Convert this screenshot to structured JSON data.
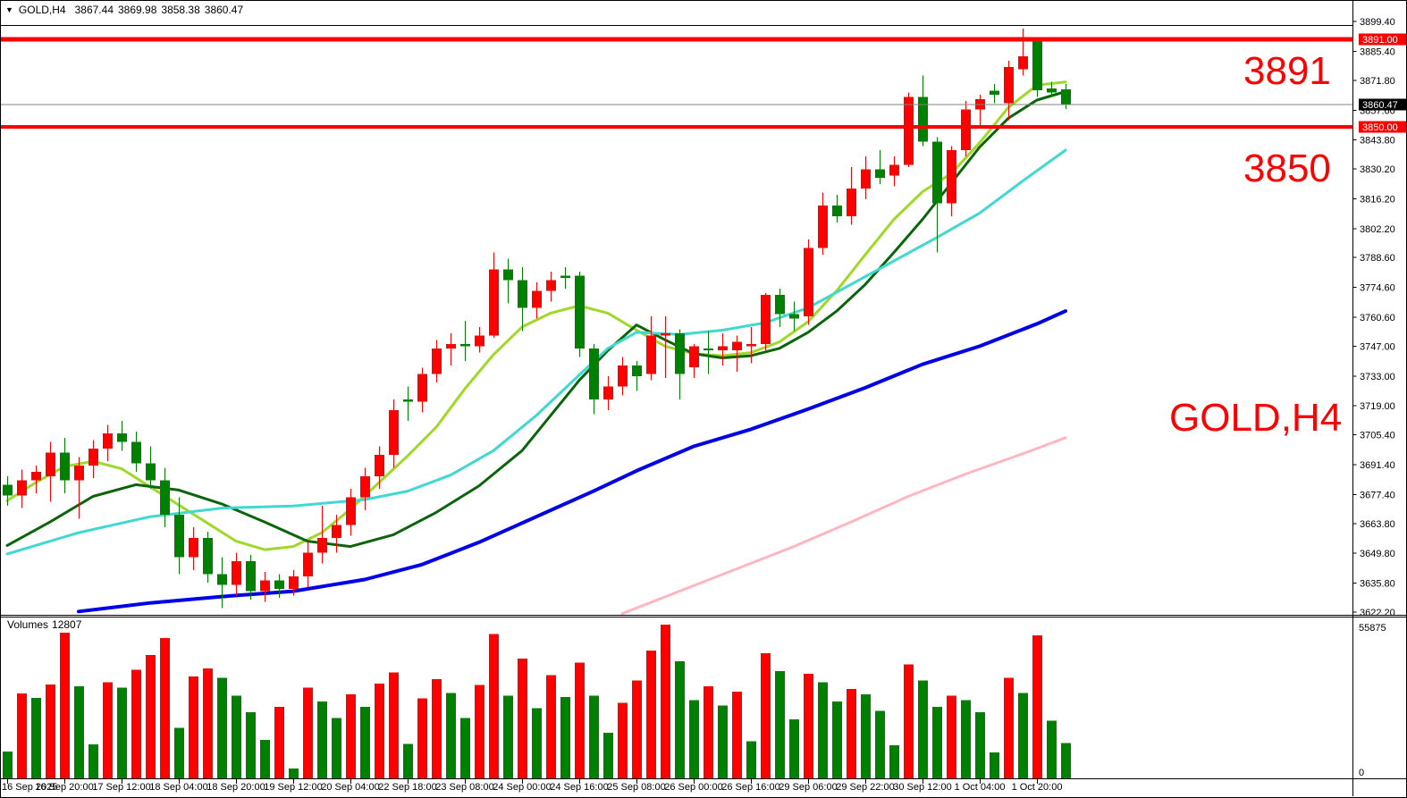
{
  "header": {
    "collapse_icon": "▼",
    "symbol": "GOLD,H4",
    "open": "3867.44",
    "high": "3869.98",
    "low": "3858.38",
    "close": "3860.47"
  },
  "annotations": {
    "resistance": "3891",
    "support": "3850",
    "symbol": "GOLD,H4"
  },
  "volume_panel": {
    "label": "Volumes",
    "current": "12807",
    "scale_max": "55875",
    "scale_min": "0"
  },
  "chart_data": {
    "type": "candlestick",
    "symbol": "GOLD",
    "timeframe": "H4",
    "title": "GOLD,H4 3867.44 3869.98 3858.38 3860.47",
    "last_ohlc": {
      "open": 3867.44,
      "high": 3869.98,
      "low": 3858.38,
      "close": 3860.47
    },
    "y_axis": {
      "min": 3622.2,
      "max": 3899.4,
      "tick_labels": [
        "3899.40",
        "3885.40",
        "3871.80",
        "3857.60",
        "3843.80",
        "3830.20",
        "3816.20",
        "3802.20",
        "3788.60",
        "3774.60",
        "3760.60",
        "3747.00",
        "3733.00",
        "3719.00",
        "3705.40",
        "3691.40",
        "3677.40",
        "3663.80",
        "3649.80",
        "3635.80",
        "3622.20"
      ]
    },
    "x_axis": {
      "labels": [
        "16 Sep 2025",
        "16 Sep 20:00",
        "17 Sep 12:00",
        "18 Sep 04:00",
        "18 Sep 20:00",
        "19 Sep 12:00",
        "20 Sep 04:00",
        "22 Sep 18:00",
        "23 Sep 08:00",
        "24 Sep 00:00",
        "24 Sep 16:00",
        "25 Sep 08:00",
        "26 Sep 00:00",
        "26 Sep 16:00",
        "29 Sep 06:00",
        "29 Sep 22:00",
        "30 Sep 12:00",
        "1 Oct 04:00",
        "1 Oct 20:00"
      ],
      "bars_per_label": 4
    },
    "horizontal_lines": [
      {
        "price": 3891.0,
        "label": "3891.00",
        "color": "#FF0000",
        "width": 5
      },
      {
        "price": 3850.0,
        "label": "3850.00",
        "color": "#FF0000",
        "width": 4
      }
    ],
    "current_price": {
      "value": 3860.47,
      "label": "3860.47"
    },
    "colors": {
      "bull": "#FF0000",
      "bear": "#008000",
      "current_line": "#808080",
      "axis_text": "#000000",
      "annotation": "#FF0000"
    },
    "candles": [
      [
        3682,
        3686,
        3672,
        3677
      ],
      [
        3677,
        3689,
        3671,
        3684
      ],
      [
        3684,
        3691,
        3678,
        3688
      ],
      [
        3686,
        3702,
        3674,
        3697
      ],
      [
        3697,
        3704,
        3678,
        3684
      ],
      [
        3684,
        3695,
        3666,
        3691
      ],
      [
        3691,
        3703,
        3685,
        3699
      ],
      [
        3699,
        3710,
        3693,
        3706
      ],
      [
        3706,
        3712,
        3698,
        3702
      ],
      [
        3702,
        3707,
        3688,
        3692
      ],
      [
        3692,
        3700,
        3680,
        3684
      ],
      [
        3684,
        3690,
        3662,
        3668
      ],
      [
        3668,
        3676,
        3640,
        3648
      ],
      [
        3648,
        3662,
        3642,
        3657
      ],
      [
        3657,
        3660,
        3636,
        3640
      ],
      [
        3640,
        3648,
        3624,
        3635
      ],
      [
        3635,
        3650,
        3630,
        3646
      ],
      [
        3646,
        3649,
        3628,
        3632
      ],
      [
        3632,
        3641,
        3627,
        3637
      ],
      [
        3637,
        3640,
        3629,
        3633
      ],
      [
        3633,
        3642,
        3630,
        3639
      ],
      [
        3639,
        3655,
        3634,
        3650
      ],
      [
        3650,
        3672,
        3645,
        3657
      ],
      [
        3657,
        3668,
        3650,
        3663
      ],
      [
        3663,
        3680,
        3658,
        3676
      ],
      [
        3676,
        3690,
        3670,
        3686
      ],
      [
        3686,
        3700,
        3680,
        3696
      ],
      [
        3696,
        3722,
        3690,
        3717
      ],
      [
        3722,
        3728,
        3712,
        3721
      ],
      [
        3721,
        3737,
        3716,
        3734
      ],
      [
        3734,
        3750,
        3730,
        3746
      ],
      [
        3746,
        3753,
        3738,
        3748
      ],
      [
        3748,
        3759,
        3740,
        3747
      ],
      [
        3747,
        3756,
        3744,
        3752
      ],
      [
        3752,
        3791,
        3751,
        3783
      ],
      [
        3783,
        3788,
        3767,
        3778
      ],
      [
        3778,
        3784,
        3754,
        3765
      ],
      [
        3765,
        3777,
        3760,
        3773
      ],
      [
        3773,
        3782,
        3768,
        3778
      ],
      [
        3780,
        3784,
        3774,
        3779
      ],
      [
        3780,
        3782,
        3742,
        3746
      ],
      [
        3746,
        3748,
        3715,
        3722
      ],
      [
        3722,
        3733,
        3717,
        3728
      ],
      [
        3728,
        3742,
        3724,
        3738
      ],
      [
        3738,
        3740,
        3726,
        3733
      ],
      [
        3734,
        3761,
        3731,
        3752
      ],
      [
        3752,
        3761,
        3732,
        3753
      ],
      [
        3753,
        3755,
        3722,
        3734
      ],
      [
        3737,
        3748,
        3732,
        3747
      ],
      [
        3746,
        3754,
        3734,
        3745
      ],
      [
        3745,
        3753,
        3738,
        3747
      ],
      [
        3745,
        3752,
        3735,
        3749
      ],
      [
        3747,
        3756,
        3739,
        3748
      ],
      [
        3748,
        3772,
        3745,
        3771
      ],
      [
        3771,
        3774,
        3756,
        3762
      ],
      [
        3762,
        3768,
        3754,
        3760
      ],
      [
        3761,
        3797,
        3757,
        3793
      ],
      [
        3793,
        3819,
        3790,
        3813
      ],
      [
        3813,
        3818,
        3805,
        3808
      ],
      [
        3808,
        3831,
        3804,
        3821
      ],
      [
        3821,
        3836,
        3816,
        3830
      ],
      [
        3830,
        3839,
        3823,
        3826
      ],
      [
        3827,
        3836,
        3822,
        3832
      ],
      [
        3832,
        3866,
        3831,
        3864
      ],
      [
        3864,
        3874,
        3841,
        3843
      ],
      [
        3843,
        3845,
        3791,
        3814
      ],
      [
        3814,
        3841,
        3808,
        3839
      ],
      [
        3839,
        3862,
        3836,
        3858
      ],
      [
        3858,
        3865,
        3849,
        3863
      ],
      [
        3867,
        3870,
        3861,
        3865
      ],
      [
        3861,
        3881,
        3853,
        3878
      ],
      [
        3877,
        3896,
        3874,
        3883
      ],
      [
        3890,
        3891.5,
        3864,
        3867
      ],
      [
        3868,
        3871,
        3864,
        3866
      ],
      [
        3867.44,
        3869.98,
        3858.38,
        3860.47
      ]
    ],
    "volumes": [
      9700,
      30800,
      29200,
      34100,
      53000,
      33500,
      12400,
      34900,
      33000,
      39500,
      44900,
      51000,
      18400,
      37000,
      40000,
      36500,
      30000,
      24000,
      14000,
      26000,
      3500,
      33000,
      28000,
      22000,
      30500,
      26000,
      34500,
      38500,
      12500,
      29000,
      36000,
      31000,
      22000,
      34000,
      52500,
      30000,
      43500,
      25500,
      37500,
      29500,
      42000,
      30000,
      16500,
      27500,
      35500,
      46500,
      55875,
      42500,
      28500,
      33500,
      26500,
      31500,
      13500,
      45500,
      39000,
      21500,
      38000,
      35000,
      28000,
      32500,
      30500,
      24500,
      12000,
      41500,
      35500,
      26000,
      30000,
      28500,
      24000,
      9500,
      36500,
      31000,
      52000,
      21000,
      12807
    ],
    "volume_scale": {
      "max": 55875,
      "min": 0
    },
    "moving_averages": [
      {
        "name": "ma-fast",
        "color": "#A0D828",
        "width": 3,
        "points": [
          [
            0,
            3674.5
          ],
          [
            2,
            3683
          ],
          [
            4,
            3690.5
          ],
          [
            6,
            3693
          ],
          [
            8,
            3689.5
          ],
          [
            10,
            3681
          ],
          [
            12,
            3672.5
          ],
          [
            14,
            3664
          ],
          [
            16,
            3655.5
          ],
          [
            18,
            3651.5
          ],
          [
            20,
            3653
          ],
          [
            22,
            3659.5
          ],
          [
            24,
            3670.5
          ],
          [
            26,
            3683
          ],
          [
            28,
            3695.5
          ],
          [
            30,
            3709
          ],
          [
            32,
            3727
          ],
          [
            34,
            3743
          ],
          [
            36,
            3756
          ],
          [
            38,
            3762.5
          ],
          [
            40,
            3766
          ],
          [
            42,
            3762.5
          ],
          [
            44,
            3754.5
          ],
          [
            46,
            3747
          ],
          [
            48,
            3743.5
          ],
          [
            50,
            3742.5
          ],
          [
            52,
            3744
          ],
          [
            54,
            3749
          ],
          [
            56,
            3758.5
          ],
          [
            58,
            3773
          ],
          [
            60,
            3790
          ],
          [
            62,
            3806.5
          ],
          [
            64,
            3819.5
          ],
          [
            66,
            3828
          ],
          [
            68,
            3842.5
          ],
          [
            70,
            3859
          ],
          [
            72,
            3869.5
          ],
          [
            74,
            3871
          ]
        ]
      },
      {
        "name": "ma-medium",
        "color": "#0A640A",
        "width": 3,
        "points": [
          [
            0,
            3653.5
          ],
          [
            3,
            3664.5
          ],
          [
            6,
            3676.5
          ],
          [
            9,
            3682
          ],
          [
            12,
            3679.5
          ],
          [
            15,
            3673
          ],
          [
            18,
            3664.5
          ],
          [
            21,
            3655.5
          ],
          [
            24,
            3653
          ],
          [
            27,
            3658.5
          ],
          [
            30,
            3669
          ],
          [
            33,
            3681.5
          ],
          [
            36,
            3698
          ],
          [
            38,
            3714.5
          ],
          [
            40,
            3731
          ],
          [
            42,
            3745
          ],
          [
            44,
            3757
          ],
          [
            46,
            3750
          ],
          [
            48,
            3743.5
          ],
          [
            50,
            3741.5
          ],
          [
            52,
            3742.5
          ],
          [
            54,
            3746
          ],
          [
            56,
            3753.5
          ],
          [
            58,
            3763.5
          ],
          [
            60,
            3776
          ],
          [
            62,
            3791
          ],
          [
            64,
            3806.5
          ],
          [
            66,
            3823.5
          ],
          [
            68,
            3840.5
          ],
          [
            70,
            3854
          ],
          [
            72,
            3862.5
          ],
          [
            74,
            3866.5
          ]
        ]
      },
      {
        "name": "ma-slow",
        "color": "#40D8D0",
        "width": 3,
        "points": [
          [
            0,
            3649.5
          ],
          [
            5,
            3659.5
          ],
          [
            10,
            3667
          ],
          [
            15,
            3671
          ],
          [
            20,
            3672
          ],
          [
            25,
            3675
          ],
          [
            28,
            3679
          ],
          [
            31,
            3686.5
          ],
          [
            34,
            3698
          ],
          [
            37,
            3714.5
          ],
          [
            40,
            3733.5
          ],
          [
            42,
            3746
          ],
          [
            44,
            3753.5
          ],
          [
            47,
            3752.5
          ],
          [
            50,
            3754.5
          ],
          [
            53,
            3758
          ],
          [
            56,
            3765
          ],
          [
            59,
            3776
          ],
          [
            62,
            3787
          ],
          [
            65,
            3798
          ],
          [
            68,
            3809.5
          ],
          [
            71,
            3824.5
          ],
          [
            74,
            3839
          ]
        ]
      },
      {
        "name": "ma-long",
        "color": "#0000E8",
        "width": 4,
        "points": [
          [
            5,
            3622.5
          ],
          [
            10,
            3626.5
          ],
          [
            15,
            3629.5
          ],
          [
            20,
            3632
          ],
          [
            25,
            3637.5
          ],
          [
            29,
            3644.5
          ],
          [
            33,
            3655
          ],
          [
            37,
            3667
          ],
          [
            41,
            3679
          ],
          [
            44,
            3688.5
          ],
          [
            48,
            3700
          ],
          [
            52,
            3708
          ],
          [
            56,
            3717.5
          ],
          [
            60,
            3727.5
          ],
          [
            64,
            3738.5
          ],
          [
            68,
            3747
          ],
          [
            72,
            3757.5
          ],
          [
            74,
            3763.5
          ]
        ]
      },
      {
        "name": "ma-longest",
        "color": "#FFB6C1",
        "width": 3,
        "points": [
          [
            43,
            3621.5
          ],
          [
            47,
            3632
          ],
          [
            51,
            3642.5
          ],
          [
            55,
            3653
          ],
          [
            59,
            3664.5
          ],
          [
            63,
            3676.5
          ],
          [
            67,
            3687
          ],
          [
            71,
            3696.5
          ],
          [
            74,
            3704
          ]
        ]
      }
    ]
  }
}
